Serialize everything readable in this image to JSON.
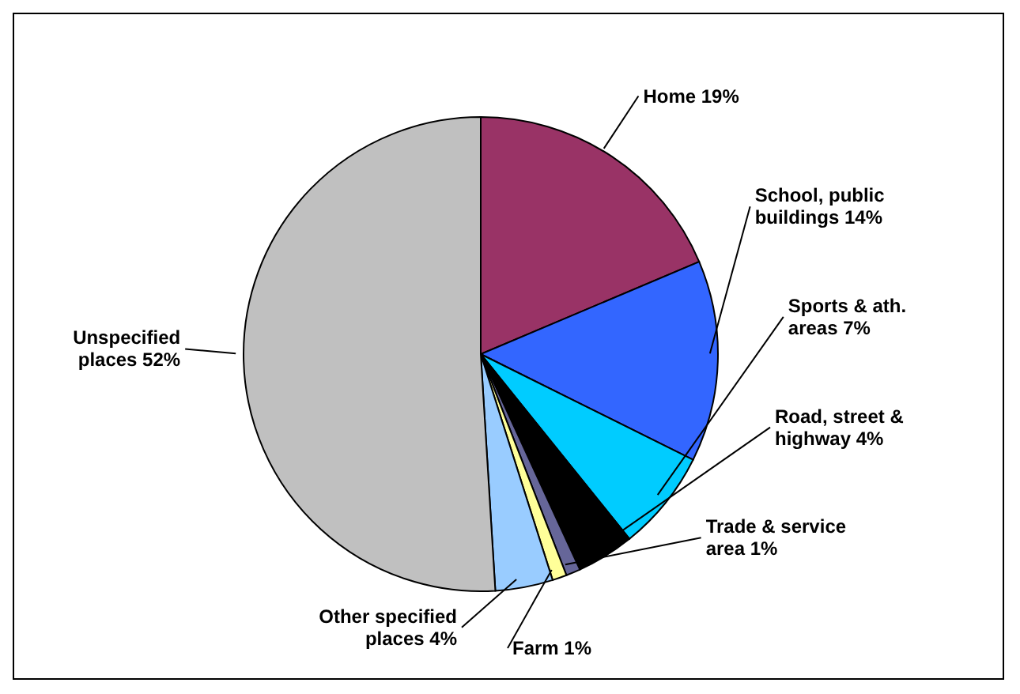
{
  "chart_data": {
    "type": "pie",
    "categories": [
      "Home",
      "School, public buildings",
      "Sports & ath. areas",
      "Road, street & highway",
      "Trade & service area",
      "Farm",
      "Other specified places",
      "Unspecified places"
    ],
    "values": [
      19,
      14,
      7,
      4,
      1,
      1,
      4,
      52
    ],
    "value_labels": [
      "19%",
      "14%",
      "7%",
      "4%",
      "1%",
      "1%",
      "4%",
      "52%"
    ],
    "colors": [
      "#993366",
      "#3366ff",
      "#00ccff",
      "#000000",
      "#666699",
      "#ffff99",
      "#99ccff",
      "#c0c0c0"
    ]
  }
}
